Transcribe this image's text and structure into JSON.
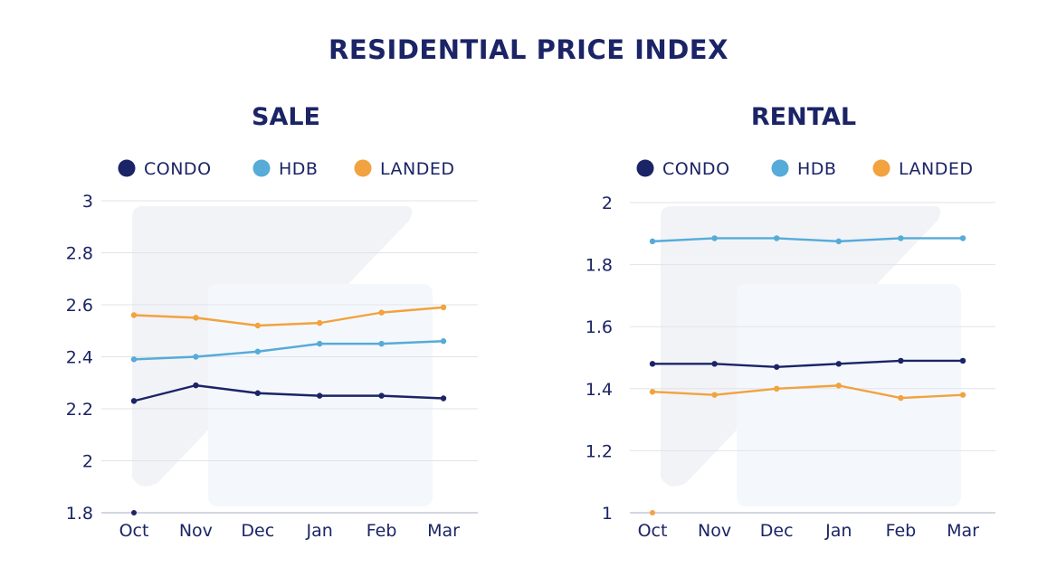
{
  "title": "RESIDENTIAL PRICE INDEX",
  "colors": {
    "condo": "#1b2466",
    "hdb": "#56abd8",
    "landed": "#f2a23f",
    "text": "#1b2466"
  },
  "chart_data": [
    {
      "type": "line",
      "title": "SALE",
      "categories": [
        "Oct",
        "Nov",
        "Dec",
        "Jan",
        "Feb",
        "Mar"
      ],
      "yticks": [
        "3",
        "2.8",
        "2.6",
        "2.4",
        "2.2",
        "2",
        "1.8"
      ],
      "ylim": [
        1.8,
        3
      ],
      "grid": true,
      "legend": "top",
      "series": [
        {
          "name": "CONDO",
          "color": "#1b2466",
          "values": [
            2.23,
            2.29,
            2.26,
            2.25,
            2.25,
            2.24
          ]
        },
        {
          "name": "HDB",
          "color": "#56abd8",
          "values": [
            2.39,
            2.4,
            2.42,
            2.45,
            2.45,
            2.46
          ]
        },
        {
          "name": "LANDED",
          "color": "#f2a23f",
          "values": [
            2.56,
            2.55,
            2.52,
            2.53,
            2.57,
            2.59
          ]
        }
      ]
    },
    {
      "type": "line",
      "title": "RENTAL",
      "categories": [
        "Oct",
        "Nov",
        "Dec",
        "Jan",
        "Feb",
        "Mar"
      ],
      "yticks": [
        "2",
        "1.8",
        "1.6",
        "1.4",
        "1.2",
        "1"
      ],
      "ylim": [
        1,
        2
      ],
      "grid": true,
      "legend": "top",
      "series": [
        {
          "name": "CONDO",
          "color": "#1b2466",
          "values": [
            1.48,
            1.48,
            1.47,
            1.48,
            1.49,
            1.49
          ]
        },
        {
          "name": "HDB",
          "color": "#56abd8",
          "values": [
            1.875,
            1.885,
            1.885,
            1.875,
            1.885,
            1.885
          ]
        },
        {
          "name": "LANDED",
          "color": "#f2a23f",
          "values": [
            1.39,
            1.38,
            1.4,
            1.41,
            1.37,
            1.38
          ]
        }
      ]
    }
  ]
}
